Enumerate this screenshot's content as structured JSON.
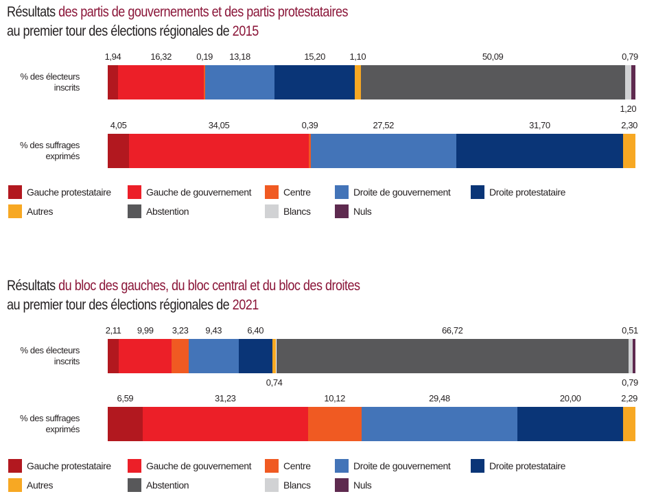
{
  "colors": {
    "Gauche protestataire": "#b2181f",
    "Gauche de gouvernement": "#ec1f28",
    "Centre": "#f05a22",
    "Droite de gouvernement": "#4374b8",
    "Droite protestataire": "#0a3577",
    "Autres": "#f7a823",
    "Abstention": "#58585a",
    "Blancs": "#d1d2d4",
    "Nuls": "#5e2a4f",
    "title_accent": "#8a1538"
  },
  "chart_data": [
    {
      "type": "bar",
      "orientation": "horizontal-stacked-100",
      "title": {
        "part1": "Résultats ",
        "part2": "des partis de gouvernements et des partis protestataires",
        "line2a": "au premier tour des élections régionales de ",
        "line2b": "2015"
      },
      "categories": [
        "% des électeurs inscrits",
        "% des suffrages exprimés"
      ],
      "category_lines": [
        [
          "% des électeurs",
          "inscrits"
        ],
        [
          "% des suffrages",
          "exprimés"
        ]
      ],
      "series": [
        {
          "name": "Gauche protestataire",
          "values": [
            1.94,
            4.05
          ],
          "labels": [
            "1,94",
            "4,05"
          ]
        },
        {
          "name": "Gauche de gouvernement",
          "values": [
            16.32,
            34.05
          ],
          "labels": [
            "16,32",
            "34,05"
          ]
        },
        {
          "name": "Centre",
          "values": [
            0.19,
            0.39
          ],
          "labels": [
            "0,19",
            "0,39"
          ]
        },
        {
          "name": "Droite de gouvernement",
          "values": [
            13.18,
            27.52
          ],
          "labels": [
            "13,18",
            "27,52"
          ]
        },
        {
          "name": "Droite protestataire",
          "values": [
            15.2,
            31.7
          ],
          "labels": [
            "15,20",
            "31,70"
          ]
        },
        {
          "name": "Autres",
          "values": [
            1.1,
            2.3
          ],
          "labels": [
            "1,10",
            "2,30"
          ]
        },
        {
          "name": "Abstention",
          "values": [
            50.09,
            0
          ],
          "labels": [
            "50,09",
            null
          ]
        },
        {
          "name": "Blancs",
          "values": [
            1.2,
            0
          ],
          "labels": [
            "1,20",
            null
          ],
          "label_below": [
            true,
            false
          ]
        },
        {
          "name": "Nuls",
          "values": [
            0.79,
            0
          ],
          "labels": [
            "0,79",
            null
          ]
        }
      ],
      "legend": [
        "Gauche protestataire",
        "Gauche de gouvernement",
        "Centre",
        "Droite de gouvernement",
        "Droite protestataire",
        "Autres",
        "Abstention",
        "Blancs",
        "Nuls"
      ],
      "legend_position": "bottom",
      "xlim": [
        0,
        100
      ]
    },
    {
      "type": "bar",
      "orientation": "horizontal-stacked-100",
      "title": {
        "part1": "Résultats ",
        "part2": "du bloc des gauches, du bloc central et du bloc des droites",
        "line2a": "au premier tour des élections régionales de ",
        "line2b": "2021"
      },
      "categories": [
        "% des électeurs inscrits",
        "% des suffrages exprimés"
      ],
      "category_lines": [
        [
          "% des électeurs",
          "inscrits"
        ],
        [
          "% des suffrages",
          "exprimés"
        ]
      ],
      "series": [
        {
          "name": "Gauche protestataire",
          "values": [
            2.11,
            6.59
          ],
          "labels": [
            "2,11",
            "6,59"
          ]
        },
        {
          "name": "Gauche de gouvernement",
          "values": [
            9.99,
            31.23
          ],
          "labels": [
            "9,99",
            "31,23"
          ]
        },
        {
          "name": "Centre",
          "values": [
            3.23,
            10.12
          ],
          "labels": [
            "3,23",
            "10,12"
          ]
        },
        {
          "name": "Droite de gouvernement",
          "values": [
            9.43,
            29.48
          ],
          "labels": [
            "9,43",
            "29,48"
          ]
        },
        {
          "name": "Droite protestataire",
          "values": [
            6.4,
            20.0
          ],
          "labels": [
            "6,40",
            "20,00"
          ]
        },
        {
          "name": "Autres",
          "values": [
            0.74,
            2.29
          ],
          "labels": [
            "0,74",
            "2,29"
          ],
          "label_below": [
            true,
            false
          ]
        },
        {
          "name": "Abstention",
          "values": [
            66.72,
            0
          ],
          "labels": [
            "66,72",
            null
          ]
        },
        {
          "name": "Blancs",
          "values": [
            0.79,
            0
          ],
          "labels": [
            "0,79",
            null
          ],
          "label_below": [
            true,
            false
          ]
        },
        {
          "name": "Nuls",
          "values": [
            0.51,
            0
          ],
          "labels": [
            "0,51",
            null
          ]
        }
      ],
      "legend": [
        "Gauche protestataire",
        "Gauche de gouvernement",
        "Centre",
        "Droite de gouvernement",
        "Droite protestataire",
        "Autres",
        "Abstention",
        "Blancs",
        "Nuls"
      ],
      "legend_position": "bottom",
      "xlim": [
        0,
        100
      ]
    }
  ]
}
